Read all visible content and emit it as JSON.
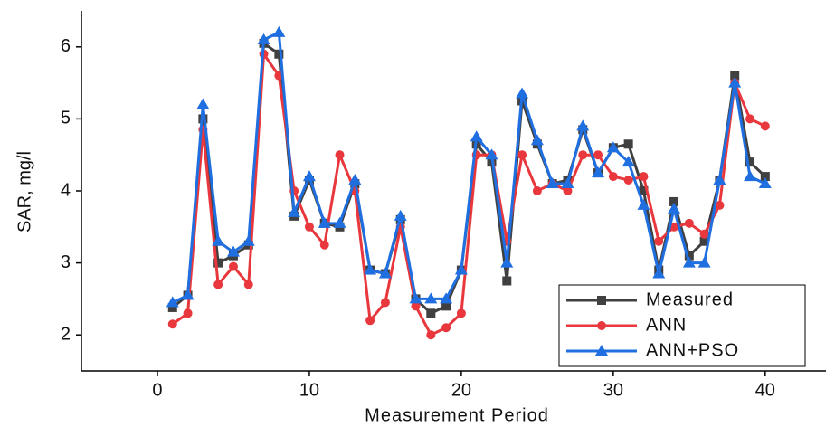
{
  "chart_data": {
    "type": "line",
    "x_label": "Measurement Period",
    "y_label": "SAR, mg/l",
    "x": [
      1,
      2,
      3,
      4,
      5,
      6,
      7,
      8,
      9,
      10,
      11,
      12,
      13,
      14,
      15,
      16,
      17,
      18,
      19,
      20,
      21,
      22,
      23,
      24,
      25,
      26,
      27,
      28,
      29,
      30,
      31,
      32,
      33,
      34,
      35,
      36,
      37,
      38,
      39,
      40
    ],
    "series": [
      {
        "name": "Measured",
        "color": "#404040",
        "marker": "square",
        "values": [
          2.38,
          2.55,
          5.0,
          3.0,
          3.1,
          3.25,
          6.05,
          5.9,
          3.65,
          4.15,
          3.55,
          3.5,
          4.1,
          2.9,
          2.85,
          3.6,
          2.5,
          2.3,
          2.4,
          2.9,
          4.65,
          4.4,
          2.75,
          5.25,
          4.65,
          4.1,
          4.15,
          4.85,
          4.25,
          4.6,
          4.65,
          4.0,
          2.9,
          3.85,
          3.1,
          3.3,
          4.15,
          5.6,
          4.4,
          4.2
        ]
      },
      {
        "name": "ANN",
        "color": "#e8383d",
        "marker": "circle",
        "values": [
          2.15,
          2.3,
          4.85,
          2.7,
          2.95,
          2.7,
          5.9,
          5.6,
          4.0,
          3.5,
          3.25,
          4.5,
          4.0,
          2.2,
          2.45,
          3.5,
          2.4,
          2.0,
          2.1,
          2.3,
          4.5,
          4.5,
          3.3,
          4.5,
          4.0,
          4.1,
          4.0,
          4.5,
          4.5,
          4.2,
          4.15,
          4.2,
          3.3,
          3.5,
          3.55,
          3.4,
          3.8,
          5.5,
          5.0,
          4.9
        ]
      },
      {
        "name": "ANN+PSO",
        "color": "#1f6fe0",
        "marker": "triangle",
        "values": [
          2.45,
          2.55,
          5.2,
          3.3,
          3.15,
          3.3,
          6.1,
          6.2,
          3.7,
          4.2,
          3.55,
          3.55,
          4.15,
          2.9,
          2.85,
          3.65,
          2.5,
          2.5,
          2.5,
          2.9,
          4.75,
          4.5,
          3.0,
          5.35,
          4.7,
          4.1,
          4.1,
          4.9,
          4.25,
          4.6,
          4.4,
          3.8,
          2.85,
          3.75,
          3.0,
          3.0,
          4.15,
          5.5,
          4.2,
          4.1
        ]
      }
    ],
    "xlim": [
      -5,
      44
    ],
    "ylim": [
      1.5,
      6.5
    ],
    "xticks": [
      0,
      10,
      20,
      30,
      40
    ],
    "yticks": [
      2,
      3,
      4,
      5,
      6
    ],
    "legend": "lower right"
  }
}
